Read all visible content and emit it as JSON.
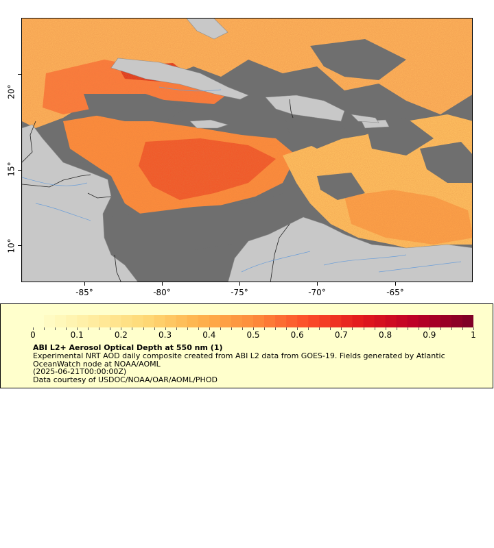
{
  "map": {
    "y_ticks": [
      "20°",
      "15°",
      "10°"
    ],
    "x_ticks": [
      "-85°",
      "-80°",
      "-75°",
      "-70°",
      "-65°"
    ],
    "colors": {
      "no_data": "#6f6f6f",
      "land": "#c8c8c8",
      "border": "#222222",
      "river": "#6b9ed8"
    }
  },
  "legend": {
    "title": "ABI L2+ Aerosol Optical Depth at 550 nm (1)",
    "description_lines": [
      "Experimental NRT AOD daily composite created from ABI L2 data from GOES-19. Fields generated by Atlantic",
      "OceanWatch node at NOAA/AOML",
      "(2025-06-21T00:00:00Z)",
      "Data courtesy of USDOC/NOAA/OAR/AOML/PHOD"
    ],
    "scale_labels": [
      "0",
      "0.1",
      "0.2",
      "0.3",
      "0.4",
      "0.5",
      "0.6",
      "0.7",
      "0.8",
      "0.9",
      "1"
    ],
    "scale_range": [
      0,
      1
    ],
    "colormap": [
      "#ffffcc",
      "#ffeda0",
      "#fed976",
      "#feb24c",
      "#fd8d3c",
      "#fc4e2a",
      "#e31a1c",
      "#bd0026",
      "#800026"
    ]
  }
}
